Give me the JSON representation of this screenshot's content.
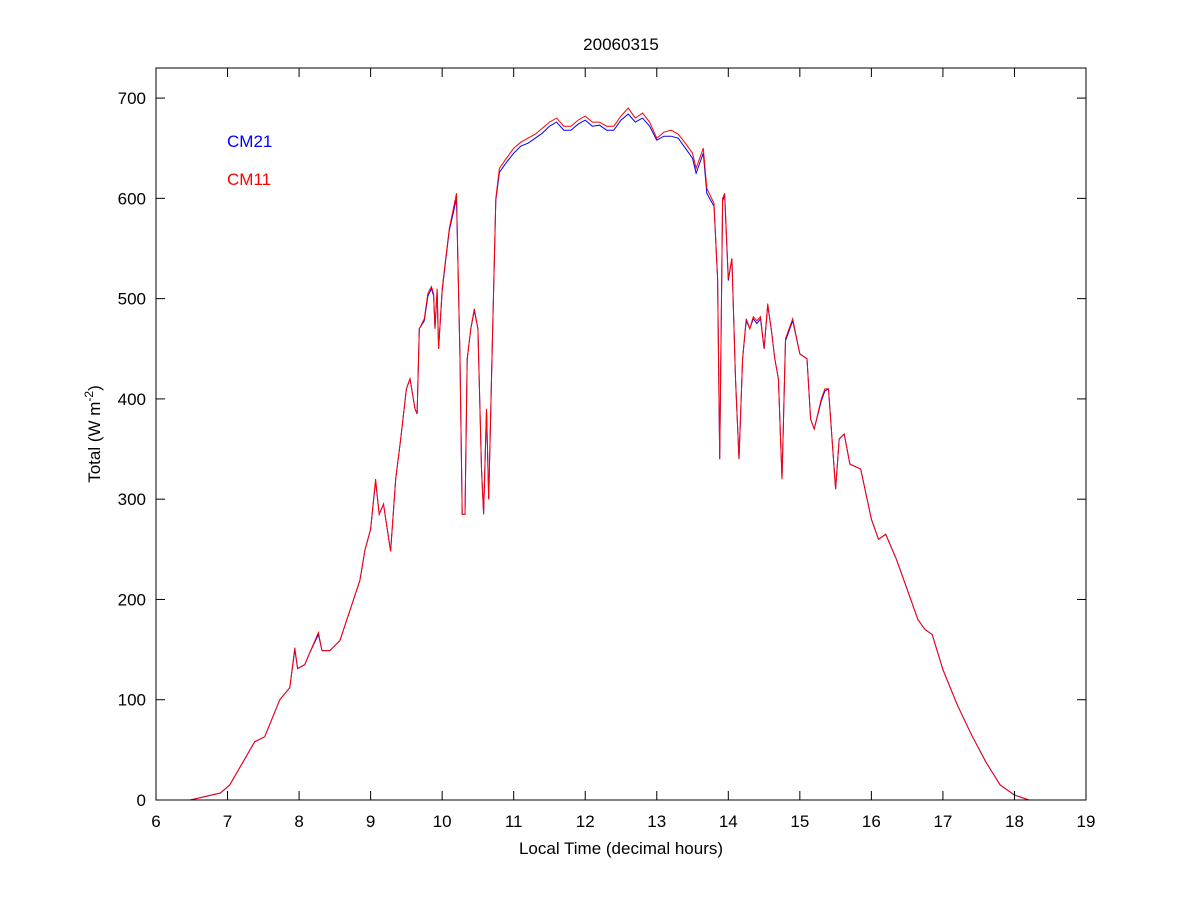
{
  "chart_data": {
    "type": "line",
    "title": "20060315",
    "xlabel": "Local Time (decimal hours)",
    "ylabel_main": "Total (W m",
    "ylabel_sup": "-2",
    "ylabel_close": ")",
    "xlim": [
      6,
      19
    ],
    "ylim": [
      0,
      730
    ],
    "xticks": [
      6,
      7,
      8,
      9,
      10,
      11,
      12,
      13,
      14,
      15,
      16,
      17,
      18,
      19
    ],
    "yticks": [
      0,
      100,
      200,
      300,
      400,
      500,
      600,
      700
    ],
    "grid": false,
    "legend_placement": "top-left",
    "x": [
      6.48,
      6.9,
      7.03,
      7.38,
      7.52,
      7.73,
      7.87,
      7.94,
      7.98,
      8.08,
      8.15,
      8.27,
      8.32,
      8.43,
      8.57,
      8.71,
      8.85,
      8.92,
      9.0,
      9.07,
      9.12,
      9.18,
      9.28,
      9.35,
      9.42,
      9.5,
      9.55,
      9.62,
      9.65,
      9.68,
      9.75,
      9.8,
      9.85,
      9.88,
      9.9,
      9.93,
      9.95,
      10.0,
      10.05,
      10.1,
      10.2,
      10.25,
      10.28,
      10.32,
      10.35,
      10.4,
      10.45,
      10.5,
      10.55,
      10.58,
      10.62,
      10.65,
      10.7,
      10.75,
      10.8,
      10.9,
      11.0,
      11.1,
      11.2,
      11.3,
      11.4,
      11.5,
      11.6,
      11.7,
      11.8,
      11.9,
      12.0,
      12.1,
      12.2,
      12.3,
      12.4,
      12.5,
      12.6,
      12.7,
      12.8,
      12.9,
      13.0,
      13.1,
      13.2,
      13.3,
      13.4,
      13.5,
      13.55,
      13.65,
      13.7,
      13.8,
      13.85,
      13.88,
      13.92,
      13.95,
      14.0,
      14.05,
      14.1,
      14.15,
      14.2,
      14.25,
      14.3,
      14.35,
      14.4,
      14.45,
      14.5,
      14.55,
      14.6,
      14.65,
      14.7,
      14.75,
      14.8,
      14.9,
      15.0,
      15.1,
      15.15,
      15.2,
      15.3,
      15.35,
      15.4,
      15.5,
      15.55,
      15.62,
      15.7,
      15.85,
      16.0,
      16.1,
      16.2,
      16.35,
      16.5,
      16.65,
      16.75,
      16.85,
      17.0,
      17.2,
      17.4,
      17.6,
      17.8,
      18.0,
      18.2
    ],
    "series": [
      {
        "name": "CM21",
        "color": "#0000ff",
        "values": [
          0,
          7,
          15,
          58,
          63,
          100,
          112,
          150,
          131,
          135,
          147,
          165,
          149,
          149,
          159,
          189,
          219,
          249,
          270,
          318,
          285,
          295,
          248,
          320,
          360,
          410,
          420,
          390,
          385,
          470,
          478,
          502,
          510,
          503,
          470,
          508,
          450,
          508,
          538,
          568,
          600,
          440,
          285,
          285,
          440,
          470,
          488,
          470,
          330,
          285,
          390,
          300,
          450,
          598,
          626,
          636,
          645,
          652,
          655,
          660,
          665,
          672,
          676,
          668,
          668,
          674,
          678,
          672,
          673,
          668,
          668,
          678,
          684,
          676,
          680,
          672,
          658,
          662,
          662,
          660,
          650,
          640,
          625,
          645,
          605,
          592,
          520,
          340,
          598,
          602,
          518,
          540,
          420,
          340,
          440,
          478,
          470,
          480,
          475,
          480,
          450,
          493,
          470,
          440,
          420,
          320,
          458,
          478,
          445,
          440,
          380,
          370,
          398,
          408,
          410,
          310,
          360,
          365,
          335,
          330,
          280,
          260,
          265,
          240,
          210,
          180,
          170,
          165,
          130,
          95,
          65,
          38,
          15,
          5,
          0
        ]
      },
      {
        "name": "CM11",
        "color": "#ff0000",
        "values": [
          0,
          7,
          15,
          58,
          63,
          100,
          112,
          152,
          131,
          135,
          147,
          167,
          149,
          149,
          159,
          189,
          219,
          249,
          270,
          320,
          285,
          295,
          248,
          320,
          360,
          410,
          420,
          390,
          385,
          470,
          480,
          505,
          512,
          505,
          470,
          510,
          450,
          510,
          540,
          570,
          605,
          440,
          285,
          285,
          440,
          470,
          490,
          470,
          330,
          285,
          390,
          300,
          450,
          600,
          630,
          640,
          650,
          656,
          660,
          664,
          670,
          676,
          680,
          672,
          672,
          678,
          682,
          676,
          676,
          672,
          672,
          682,
          690,
          680,
          685,
          676,
          660,
          666,
          668,
          664,
          655,
          645,
          630,
          650,
          610,
          595,
          520,
          340,
          600,
          605,
          520,
          540,
          420,
          340,
          440,
          480,
          470,
          482,
          478,
          482,
          450,
          495,
          470,
          440,
          420,
          320,
          460,
          480,
          445,
          440,
          380,
          370,
          400,
          410,
          410,
          310,
          360,
          365,
          335,
          330,
          280,
          260,
          265,
          240,
          210,
          180,
          170,
          165,
          130,
          95,
          65,
          38,
          15,
          5,
          0
        ]
      }
    ]
  }
}
